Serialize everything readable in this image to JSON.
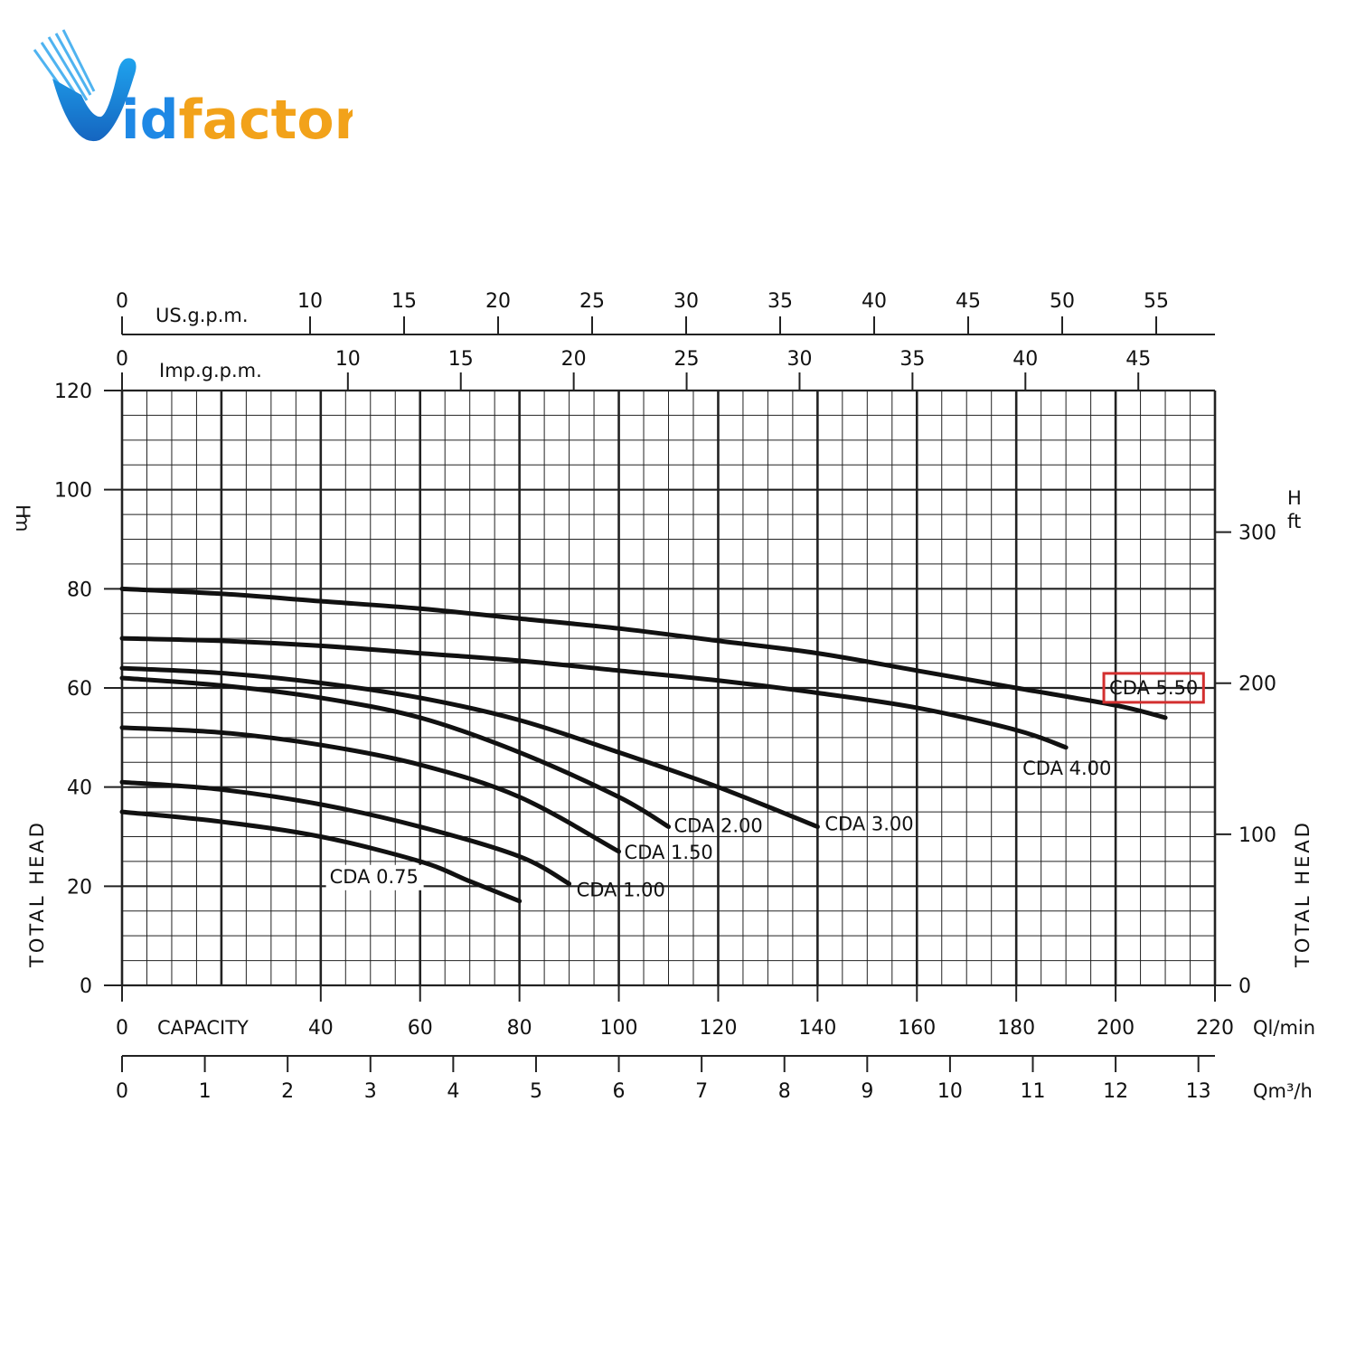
{
  "logo": {
    "text_v": "V",
    "text_rest": "idfactor",
    "colors": {
      "blue": "#1e88e5",
      "orange": "#f2a21a"
    }
  },
  "chart_data": {
    "type": "line",
    "x_primary": {
      "label": "CAPACITY",
      "unit": "Ql/min",
      "range": [
        0,
        220
      ],
      "ticks": [
        0,
        40,
        60,
        80,
        100,
        120,
        140,
        160,
        180,
        200,
        220
      ]
    },
    "x_m3h": {
      "unit": "Qm³/h",
      "range": [
        0,
        13.2
      ],
      "ticks": [
        0,
        1,
        2,
        3,
        4,
        5,
        6,
        7,
        8,
        9,
        10,
        11,
        12,
        13
      ]
    },
    "x_usgpm": {
      "unit": "US.g.p.m.",
      "ticks": [
        0,
        10,
        15,
        20,
        25,
        30,
        35,
        40,
        45,
        50,
        55
      ]
    },
    "x_impgpm": {
      "unit": "Imp.g.p.m.",
      "ticks": [
        0,
        10,
        15,
        20,
        25,
        30,
        35,
        40,
        45
      ]
    },
    "y_left": {
      "label": "TOTAL HEAD",
      "unit_h": "H",
      "unit": "m",
      "range": [
        0,
        120
      ],
      "ticks": [
        0,
        20,
        40,
        60,
        80,
        100,
        120
      ]
    },
    "y_right": {
      "label": "TOTAL HEAD",
      "unit_h": "H",
      "unit": "ft",
      "ticks": [
        0,
        100,
        200,
        300
      ]
    },
    "grid": true,
    "series": [
      {
        "name": "CDA 0.75",
        "x": [
          0,
          20,
          40,
          60,
          70,
          80
        ],
        "y": [
          35,
          33,
          30,
          25,
          21,
          17
        ]
      },
      {
        "name": "CDA 1.00",
        "x": [
          0,
          20,
          40,
          60,
          80,
          90
        ],
        "y": [
          41,
          39.5,
          36.5,
          32,
          26,
          20.5
        ]
      },
      {
        "name": "CDA 1.50",
        "x": [
          0,
          20,
          40,
          60,
          80,
          100
        ],
        "y": [
          52,
          51,
          48.5,
          44.5,
          38,
          27
        ]
      },
      {
        "name": "CDA 2.00",
        "x": [
          0,
          20,
          40,
          60,
          80,
          100,
          110
        ],
        "y": [
          62,
          60.5,
          58,
          54,
          47,
          38,
          32
        ]
      },
      {
        "name": "CDA 3.00",
        "x": [
          0,
          20,
          40,
          60,
          80,
          100,
          120,
          140
        ],
        "y": [
          64,
          63,
          61,
          58,
          53.5,
          47,
          40,
          32
        ]
      },
      {
        "name": "CDA 4.00",
        "x": [
          0,
          20,
          40,
          60,
          80,
          100,
          120,
          140,
          160,
          180,
          190
        ],
        "y": [
          70,
          69.5,
          68.5,
          67,
          65.5,
          63.5,
          61.5,
          59,
          56,
          51.5,
          48
        ]
      },
      {
        "name": "CDA 5.50",
        "x": [
          0,
          20,
          40,
          60,
          80,
          100,
          120,
          140,
          160,
          180,
          200,
          210
        ],
        "y": [
          80,
          79,
          77.5,
          76,
          74,
          72,
          69.5,
          67,
          63.5,
          60,
          56.5,
          54
        ]
      }
    ],
    "highlighted_series": "CDA 5.50",
    "highlight_color": "#d32f2f"
  }
}
